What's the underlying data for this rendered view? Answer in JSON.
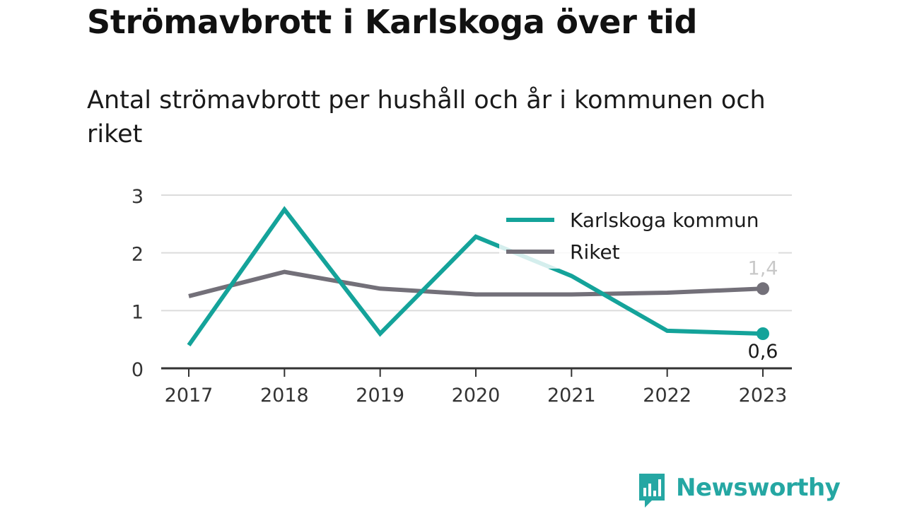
{
  "header": {
    "title": "Strömavbrott i Karlskoga över tid",
    "subtitle": "Antal strömavbrott per hushåll och år i kommunen och riket"
  },
  "branding": {
    "logo_text": "Newsworthy",
    "color": "#25a7a3"
  },
  "chart_data": {
    "type": "line",
    "title": "Strömavbrott i Karlskoga över tid",
    "subtitle": "Antal strömavbrott per hushåll och år i kommunen och riket",
    "xlabel": "",
    "ylabel": "",
    "categories": [
      "2017",
      "2018",
      "2019",
      "2020",
      "2021",
      "2022",
      "2023"
    ],
    "ylim": [
      0,
      3
    ],
    "yticks": [
      "0",
      "1",
      "2",
      "3"
    ],
    "grid": true,
    "legend_position": "top-right",
    "series": [
      {
        "name": "Karlskoga kommun",
        "color": "#14a39a",
        "values": [
          0.4,
          2.75,
          0.6,
          2.28,
          1.6,
          0.65,
          0.6
        ],
        "end_label": "0,6"
      },
      {
        "name": "Riket",
        "color": "#737079",
        "values": [
          1.25,
          1.67,
          1.38,
          1.28,
          1.28,
          1.31,
          1.38
        ],
        "end_label": "1,4"
      }
    ]
  }
}
